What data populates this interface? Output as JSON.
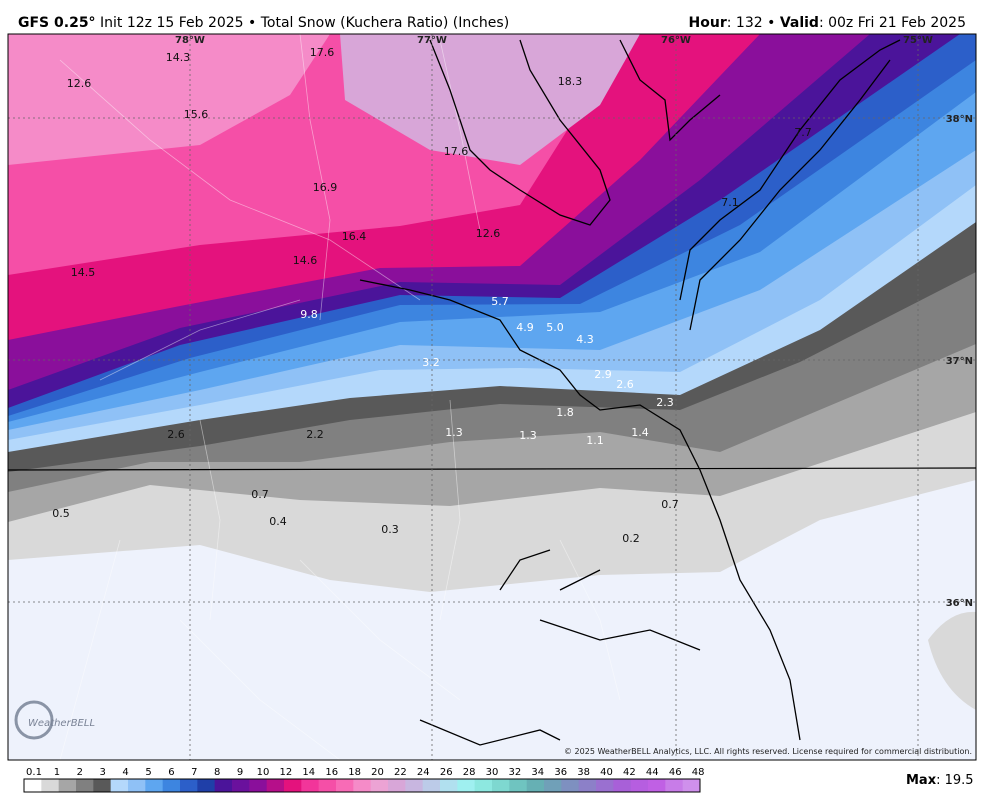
{
  "header": {
    "model": "GFS 0.25°",
    "info": "Init 12z 15 Feb 2025 • Total Snow (Kuchera Ratio) (Inches)",
    "hour_label": "Hour",
    "hour_text": ": 132 •",
    "valid_label": "Valid",
    "valid_text": ": 00z Fri 21 Feb 2025"
  },
  "map": {
    "longitudes": [
      "78°W",
      "77°W",
      "76°W",
      "75°W"
    ],
    "latitudes": [
      "38°N",
      "37°N",
      "36°N"
    ],
    "labels": [
      "14.3",
      "17.6",
      "18.3",
      "12.6",
      "15.6",
      "7.7",
      "17.6",
      "16.9",
      "7.1",
      "16.4",
      "12.6",
      "14.6",
      "14.5",
      "5.7",
      "9.8",
      "4.9",
      "5.0",
      "4.3",
      "3.2",
      "2.9",
      "2.6",
      "2.3",
      "1.8",
      "2.6",
      "2.2",
      "1.3",
      "1.3",
      "1.1",
      "1.4",
      "0.7",
      "0.5",
      "0.4",
      "0.3",
      "0.7",
      "0.2"
    ],
    "copyright": "© 2025 WeatherBELL Analytics, LLC. All rights reserved. License required for commercial distribution.",
    "logo": "WeatherBELL"
  },
  "colorbar": {
    "labels": [
      "0.1",
      "1",
      "2",
      "3",
      "4",
      "5",
      "6",
      "7",
      "8",
      "9",
      "10",
      "12",
      "14",
      "16",
      "18",
      "20",
      "22",
      "24",
      "26",
      "28",
      "30",
      "32",
      "34",
      "36",
      "38",
      "40",
      "42",
      "44",
      "46",
      "48"
    ]
  },
  "footer": {
    "max_label": "Max",
    "max_text": ": 19.5"
  }
}
